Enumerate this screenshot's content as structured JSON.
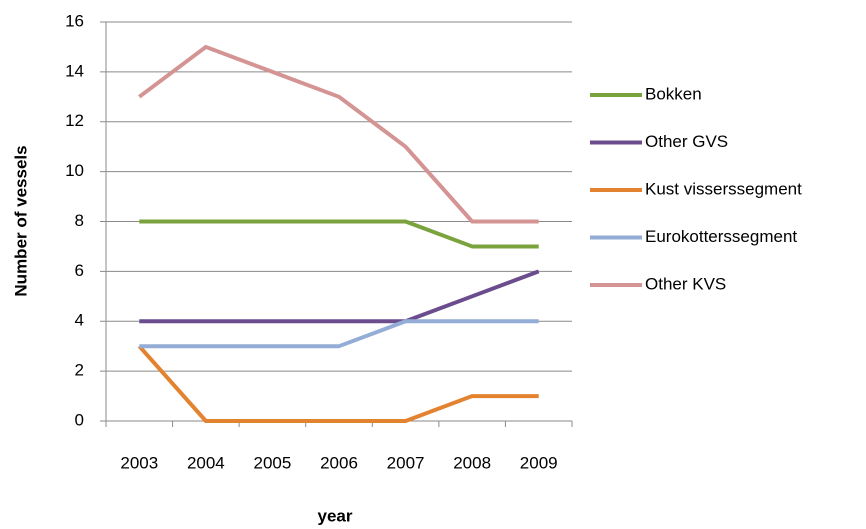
{
  "chart_data": {
    "type": "line",
    "categories": [
      "2003",
      "2004",
      "2005",
      "2006",
      "2007",
      "2008",
      "2009"
    ],
    "series": [
      {
        "name": "Bokken",
        "color": "#7aa33e",
        "values": [
          8,
          8,
          8,
          8,
          8,
          7,
          7
        ]
      },
      {
        "name": "Other GVS",
        "color": "#6b4d8d",
        "values": [
          4,
          4,
          4,
          4,
          4,
          5,
          6
        ]
      },
      {
        "name": "Kust visserssegment",
        "color": "#e3822f",
        "values": [
          3,
          0,
          0,
          0,
          0,
          1,
          1
        ]
      },
      {
        "name": "Eurokotterssegment",
        "color": "#93add6",
        "values": [
          3,
          3,
          3,
          3,
          4,
          4,
          4
        ]
      },
      {
        "name": "Other KVS",
        "color": "#d49493",
        "values": [
          13,
          15,
          14,
          13,
          11,
          8,
          8
        ]
      }
    ],
    "ylabel": "Number of vessels",
    "xlabel": "year",
    "ylim": [
      0,
      16
    ],
    "yticks": [
      0,
      2,
      4,
      6,
      8,
      10,
      12,
      14,
      16
    ],
    "grid": true,
    "legend": "right"
  }
}
